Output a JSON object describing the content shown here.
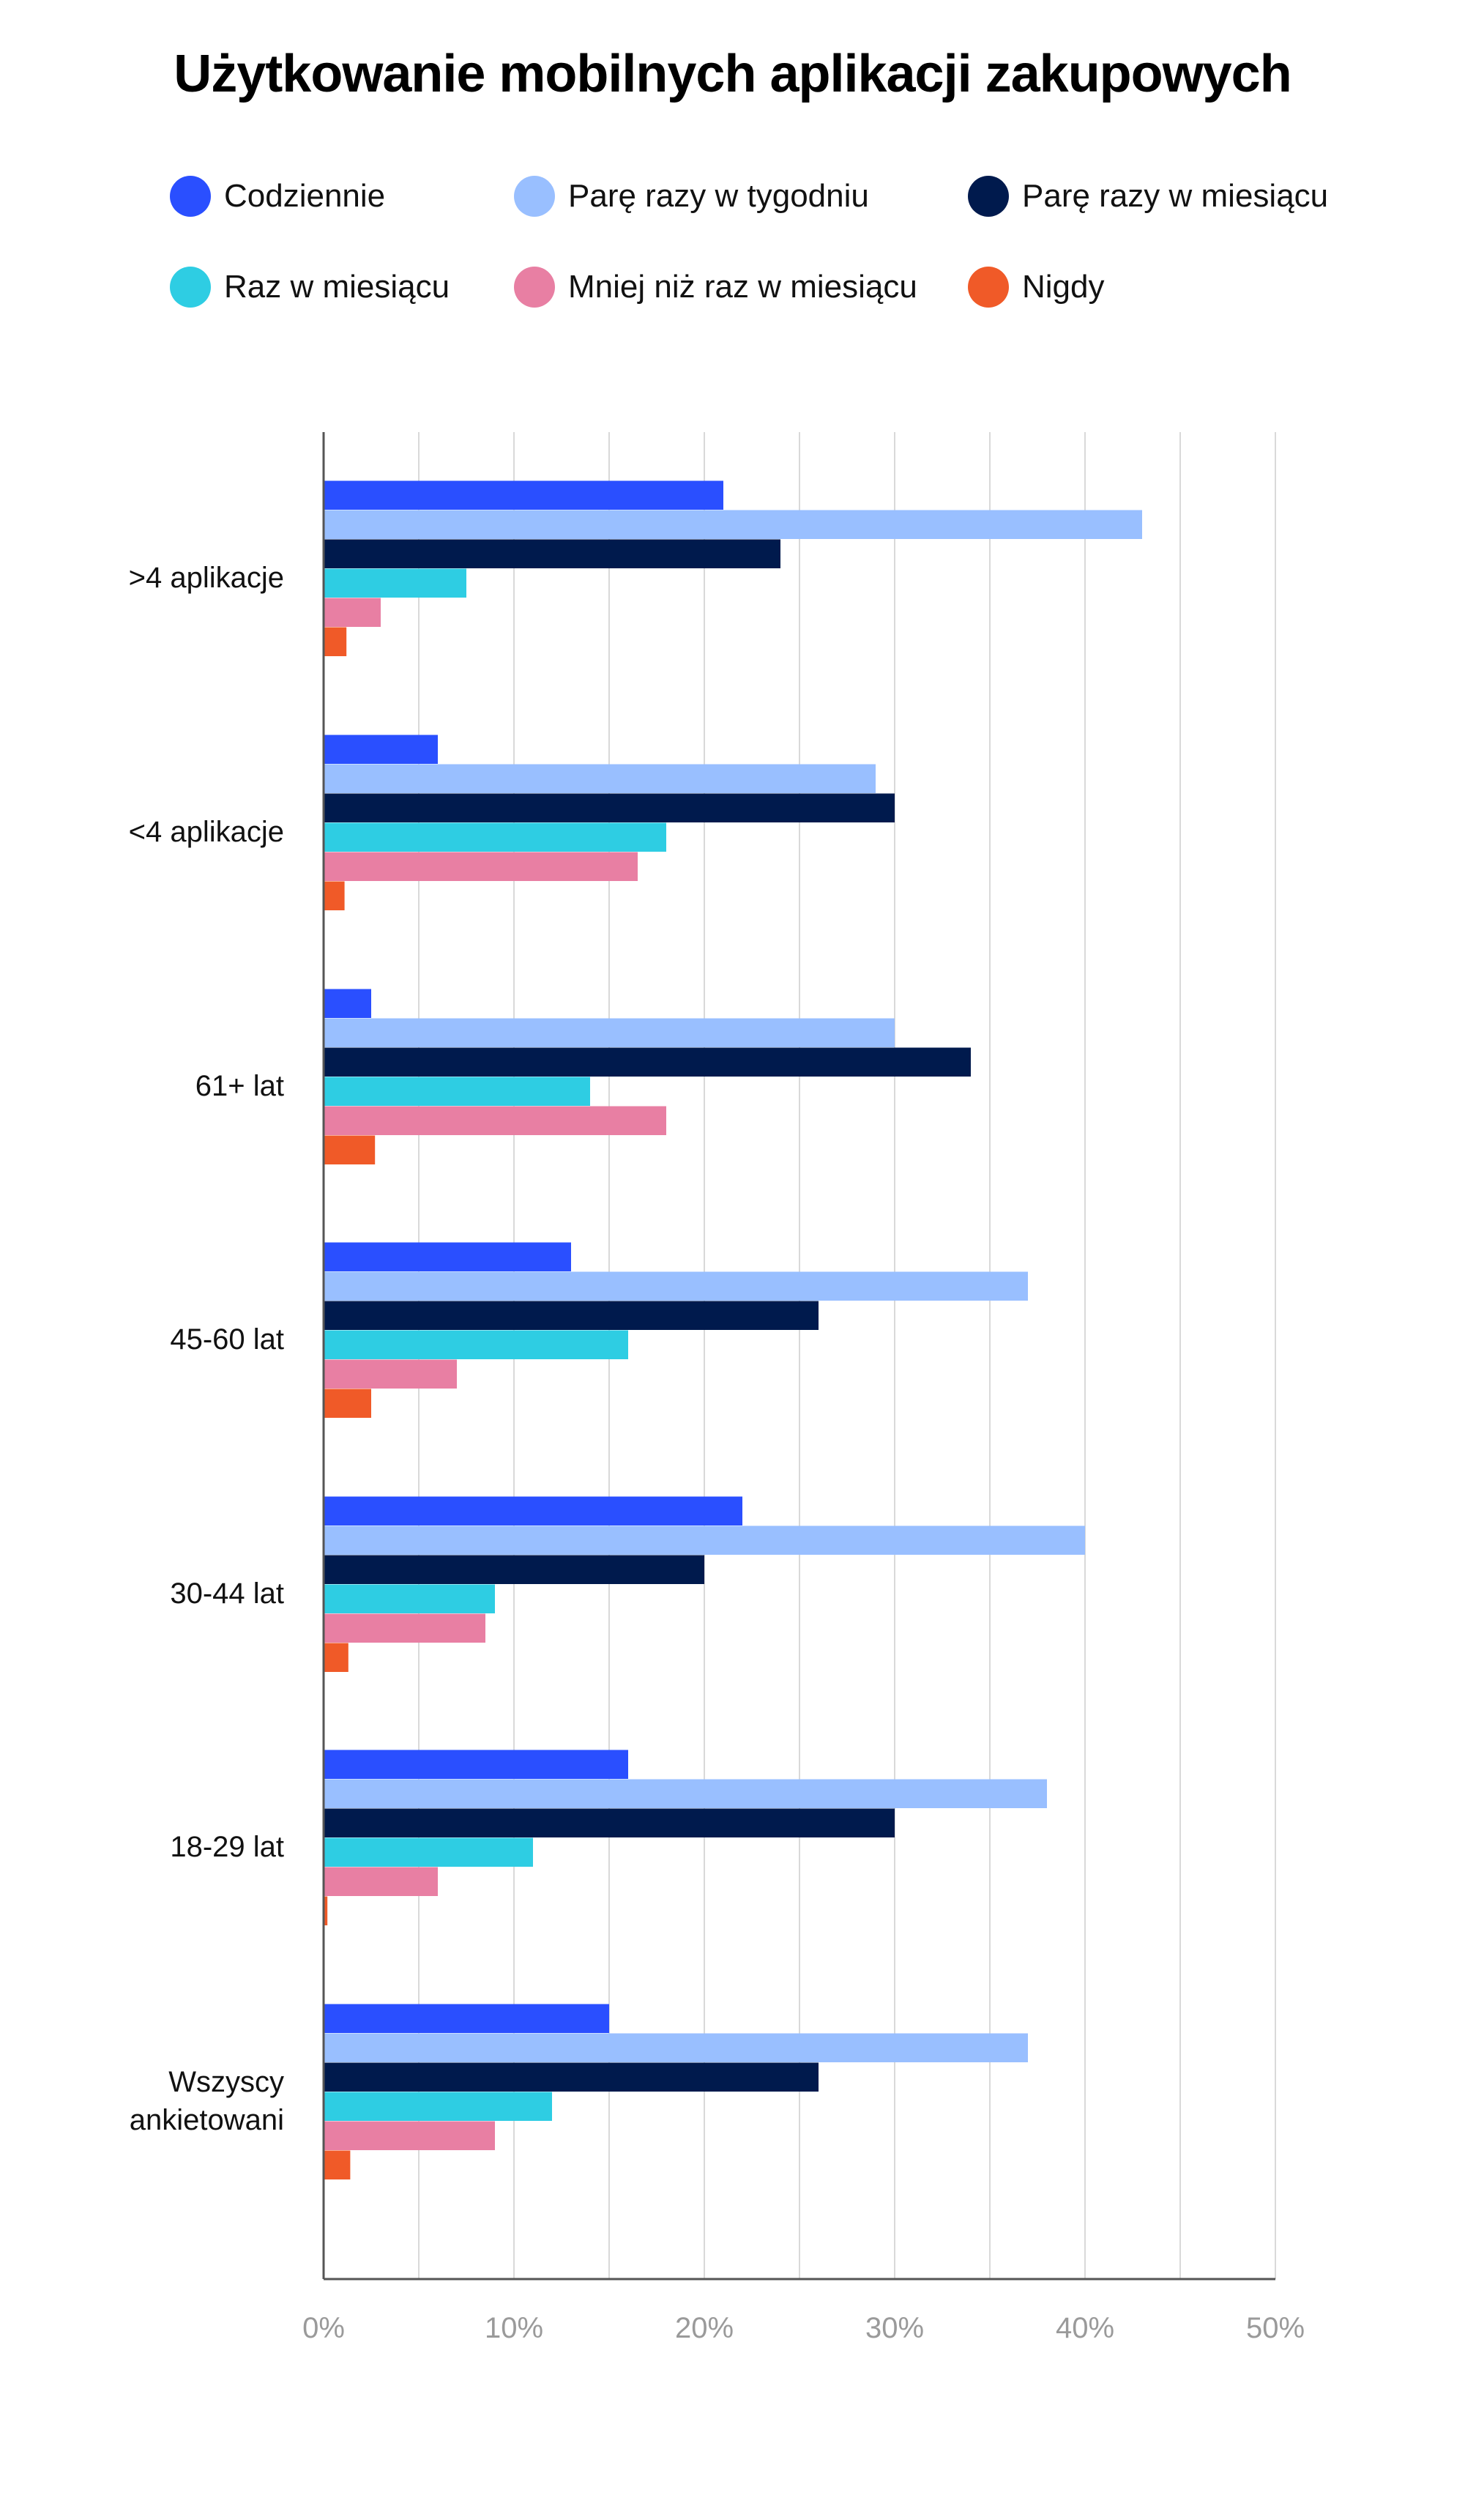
{
  "chart_data": {
    "type": "bar",
    "orientation": "horizontal",
    "title": "Użytkowanie mobilnych aplikacji zakupowych",
    "categories": [
      ">4 aplikacje",
      "<4 aplikacje",
      "61+ lat",
      "45-60 lat",
      "30-44 lat",
      "18-29 lat",
      "Wszyscy ankietowani"
    ],
    "series": [
      {
        "name": "Codziennie",
        "color": "#2a4fff",
        "values": [
          21,
          6,
          2.5,
          13,
          22,
          16,
          15
        ]
      },
      {
        "name": "Parę razy w tygodniu",
        "color": "#99bfff",
        "values": [
          43,
          29,
          30,
          37,
          40,
          38,
          37
        ]
      },
      {
        "name": "Parę razy w miesiącu",
        "color": "#001a4d",
        "values": [
          24,
          30,
          34,
          26,
          20,
          30,
          26
        ]
      },
      {
        "name": "Raz w  miesiącu",
        "color": "#2ecde3",
        "values": [
          7.5,
          18,
          14,
          16,
          9,
          11,
          12
        ]
      },
      {
        "name": "Mniej niż raz w miesiącu",
        "color": "#e87fa3",
        "values": [
          3,
          16.5,
          18,
          7,
          8.5,
          6,
          9
        ]
      },
      {
        "name": "Nigdy",
        "color": "#f05a28",
        "values": [
          1.2,
          1.1,
          2.7,
          2.5,
          1.3,
          0.2,
          1.4
        ]
      }
    ],
    "xlim": [
      0,
      50
    ],
    "xticks": [
      "0%",
      "10%",
      "20%",
      "30%",
      "40%",
      "50%"
    ],
    "grid": true,
    "legend_position": "top"
  }
}
